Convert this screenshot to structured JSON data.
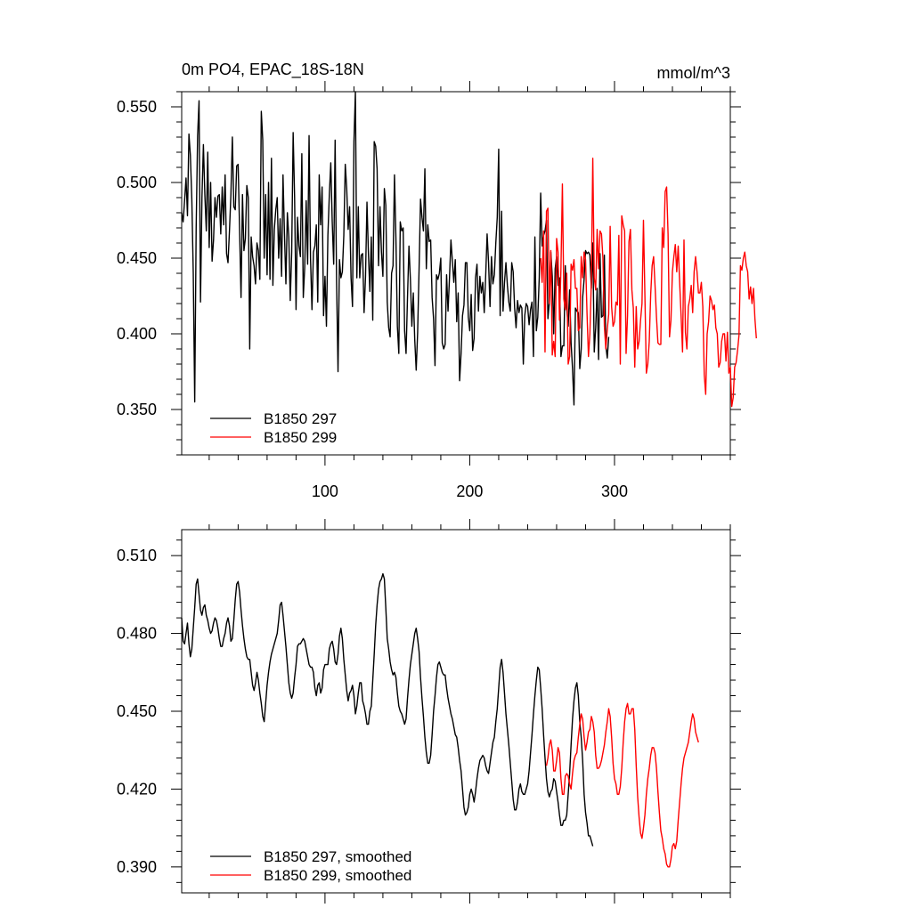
{
  "chart_data": [
    {
      "type": "line",
      "title": "0m PO4, EPAC_18S-18N",
      "units": "mmol/m^3",
      "xlim": [
        1,
        380
      ],
      "ylim": [
        0.32,
        0.56
      ],
      "xticks": [
        100,
        200,
        300
      ],
      "xtick_labels": [
        "100",
        "200",
        "300"
      ],
      "yticks": [
        0.35,
        0.4,
        0.45,
        0.5,
        0.55
      ],
      "ytick_labels": [
        "0.350",
        "0.400",
        "0.450",
        "0.500",
        "0.550"
      ],
      "grid": false,
      "legend_position": "bottom-left",
      "series": [
        {
          "name": "B1850 297",
          "color": "#000000",
          "x_start": 1,
          "values": [
            0.48,
            0.474,
            0.488,
            0.503,
            0.478,
            0.532,
            0.518,
            0.489,
            0.44,
            0.355,
            0.47,
            0.531,
            0.554,
            0.421,
            0.49,
            0.525,
            0.492,
            0.468,
            0.52,
            0.457,
            0.5,
            0.448,
            0.462,
            0.49,
            0.477,
            0.491,
            0.492,
            0.466,
            0.497,
            0.472,
            0.505,
            0.453,
            0.447,
            0.468,
            0.492,
            0.53,
            0.484,
            0.482,
            0.511,
            0.512,
            0.469,
            0.424,
            0.492,
            0.455,
            0.463,
            0.498,
            0.49,
            0.39,
            0.464,
            0.451,
            0.445,
            0.433,
            0.46,
            0.455,
            0.436,
            0.547,
            0.528,
            0.45,
            0.492,
            0.439,
            0.5,
            0.436,
            0.516,
            0.432,
            0.469,
            0.482,
            0.49,
            0.45,
            0.476,
            0.438,
            0.505,
            0.466,
            0.433,
            0.48,
            0.464,
            0.422,
            0.454,
            0.533,
            0.49,
            0.416,
            0.477,
            0.458,
            0.451,
            0.519,
            0.424,
            0.444,
            0.488,
            0.446,
            0.531,
            0.45,
            0.416,
            0.454,
            0.458,
            0.472,
            0.421,
            0.505,
            0.472,
            0.497,
            0.412,
            0.438,
            0.405,
            0.465,
            0.492,
            0.513,
            0.474,
            0.446,
            0.528,
            0.435,
            0.375,
            0.449,
            0.437,
            0.441,
            0.465,
            0.512,
            0.496,
            0.469,
            0.484,
            0.437,
            0.418,
            0.527,
            0.56,
            0.437,
            0.484,
            0.437,
            0.452,
            0.453,
            0.414,
            0.438,
            0.487,
            0.453,
            0.428,
            0.464,
            0.409,
            0.527,
            0.524,
            0.509,
            0.445,
            0.484,
            0.454,
            0.438,
            0.496,
            0.485,
            0.421,
            0.404,
            0.398,
            0.44,
            0.445,
            0.505,
            0.463,
            0.405,
            0.387,
            0.474,
            0.468,
            0.47,
            0.402,
            0.387,
            0.424,
            0.458,
            0.436,
            0.405,
            0.427,
            0.396,
            0.376,
            0.401,
            0.443,
            0.489,
            0.477,
            0.468,
            0.509,
            0.443,
            0.472,
            0.461,
            0.462,
            0.424,
            0.41,
            0.379,
            0.439,
            0.436,
            0.44,
            0.45,
            0.394,
            0.39,
            0.393,
            0.439,
            0.415,
            0.437,
            0.462,
            0.448,
            0.434,
            0.449,
            0.408,
            0.427,
            0.369,
            0.387,
            0.412,
            0.419,
            0.447,
            0.447,
            0.411,
            0.402,
            0.426,
            0.389,
            0.397,
            0.437,
            0.446,
            0.415,
            0.438,
            0.427,
            0.434,
            0.414,
            0.438,
            0.466,
            0.447,
            0.418,
            0.451,
            0.433,
            0.439,
            0.46,
            0.477,
            0.522,
            0.412,
            0.481,
            0.415,
            0.434,
            0.447,
            0.432,
            0.421,
            0.415,
            0.447,
            0.441,
            0.417,
            0.404,
            0.422,
            0.414,
            0.419,
            0.417,
            0.38,
            0.412,
            0.42,
            0.418,
            0.406,
            0.416,
            0.421,
            0.385,
            0.464,
            0.402,
            0.411,
            0.437,
            0.493,
            0.458,
            0.465,
            0.468,
            0.475,
            0.41,
            0.421,
            0.454,
            0.438,
            0.4,
            0.443,
            0.451,
            0.432,
            0.437,
            0.385,
            0.392,
            0.392,
            0.445,
            0.417,
            0.405,
            0.429,
            0.394,
            0.377,
            0.353,
            0.417,
            0.415,
            0.414,
            0.377,
            0.39,
            0.424,
            0.436,
            0.455,
            0.453,
            0.454,
            0.452,
            0.43,
            0.46,
            0.388,
            0.404,
            0.43,
            0.383,
            0.453,
            0.411,
            0.412,
            0.452,
            0.392,
            0.384,
            0.398
          ]
        },
        {
          "name": "B1850 299",
          "color": "#ff0000",
          "x_start": 249,
          "values": [
            0.45,
            0.434,
            0.468,
            0.388,
            0.481,
            0.483,
            0.42,
            0.455,
            0.386,
            0.395,
            0.385,
            0.463,
            0.454,
            0.409,
            0.443,
            0.499,
            0.423,
            0.416,
            0.44,
            0.38,
            0.385,
            0.446,
            0.442,
            0.449,
            0.43,
            0.43,
            0.402,
            0.404,
            0.451,
            0.437,
            0.454,
            0.449,
            0.414,
            0.385,
            0.4,
            0.435,
            0.516,
            0.437,
            0.429,
            0.469,
            0.443,
            0.468,
            0.466,
            0.45,
            0.405,
            0.39,
            0.403,
            0.413,
            0.471,
            0.418,
            0.405,
            0.408,
            0.421,
            0.419,
            0.465,
            0.38,
            0.478,
            0.472,
            0.468,
            0.387,
            0.412,
            0.461,
            0.469,
            0.429,
            0.417,
            0.378,
            0.418,
            0.39,
            0.395,
            0.409,
            0.42,
            0.475,
            0.425,
            0.374,
            0.38,
            0.395,
            0.426,
            0.445,
            0.451,
            0.432,
            0.411,
            0.394,
            0.393,
            0.393,
            0.47,
            0.457,
            0.494,
            0.497,
            0.466,
            0.398,
            0.409,
            0.441,
            0.451,
            0.459,
            0.441,
            0.458,
            0.434,
            0.412,
            0.388,
            0.462,
            0.401,
            0.39,
            0.418,
            0.423,
            0.432,
            0.414,
            0.441,
            0.451,
            0.441,
            0.427,
            0.427,
            0.434,
            0.418,
            0.373,
            0.36,
            0.4,
            0.408,
            0.425,
            0.422,
            0.416,
            0.419,
            0.404,
            0.4,
            0.378,
            0.381,
            0.395,
            0.4,
            0.4,
            0.382,
            0.401,
            0.374,
            0.378,
            0.352,
            0.358,
            0.378,
            0.381,
            0.389,
            0.399,
            0.445,
            0.442,
            0.45,
            0.454,
            0.445,
            0.441,
            0.423,
            0.431,
            0.42,
            0.43,
            0.41,
            0.397
          ]
        }
      ],
      "legend": [
        "B1850 297",
        "B1850 299"
      ]
    },
    {
      "type": "line",
      "title": "",
      "xlim": [
        1,
        380
      ],
      "ylim": [
        0.38,
        0.52
      ],
      "xticks": [
        100,
        200,
        300
      ],
      "yticks": [
        0.39,
        0.42,
        0.45,
        0.48,
        0.51
      ],
      "ytick_labels": [
        "0.390",
        "0.420",
        "0.450",
        "0.480",
        "0.510"
      ],
      "grid": false,
      "legend_position": "bottom-left",
      "series": [
        {
          "name": "B1850 297, smoothed",
          "color": "#000000",
          "x_start": 1,
          "values": [
            0.486,
            0.477,
            0.476,
            0.48,
            0.484,
            0.476,
            0.471,
            0.474,
            0.482,
            0.49,
            0.499,
            0.501,
            0.495,
            0.489,
            0.487,
            0.49,
            0.491,
            0.487,
            0.485,
            0.482,
            0.48,
            0.481,
            0.484,
            0.486,
            0.485,
            0.482,
            0.478,
            0.475,
            0.475,
            0.478,
            0.48,
            0.484,
            0.486,
            0.483,
            0.477,
            0.478,
            0.485,
            0.493,
            0.499,
            0.5,
            0.496,
            0.489,
            0.483,
            0.478,
            0.474,
            0.471,
            0.47,
            0.47,
            0.465,
            0.46,
            0.458,
            0.461,
            0.465,
            0.462,
            0.457,
            0.453,
            0.448,
            0.446,
            0.453,
            0.46,
            0.465,
            0.469,
            0.472,
            0.474,
            0.476,
            0.478,
            0.48,
            0.485,
            0.491,
            0.492,
            0.487,
            0.481,
            0.475,
            0.468,
            0.461,
            0.457,
            0.455,
            0.457,
            0.463,
            0.468,
            0.475,
            0.476,
            0.476,
            0.477,
            0.478,
            0.477,
            0.474,
            0.471,
            0.468,
            0.467,
            0.467,
            0.465,
            0.459,
            0.456,
            0.46,
            0.461,
            0.457,
            0.459,
            0.466,
            0.468,
            0.468,
            0.468,
            0.474,
            0.476,
            0.477,
            0.474,
            0.469,
            0.468,
            0.472,
            0.479,
            0.482,
            0.478,
            0.47,
            0.464,
            0.458,
            0.454,
            0.457,
            0.458,
            0.46,
            0.456,
            0.449,
            0.452,
            0.457,
            0.461,
            0.461,
            0.454,
            0.452,
            0.449,
            0.445,
            0.445,
            0.45,
            0.452,
            0.462,
            0.472,
            0.483,
            0.491,
            0.497,
            0.5,
            0.501,
            0.503,
            0.501,
            0.49,
            0.478,
            0.474,
            0.469,
            0.466,
            0.464,
            0.465,
            0.463,
            0.457,
            0.452,
            0.45,
            0.449,
            0.447,
            0.445,
            0.447,
            0.455,
            0.462,
            0.468,
            0.472,
            0.476,
            0.48,
            0.482,
            0.478,
            0.473,
            0.463,
            0.455,
            0.448,
            0.44,
            0.434,
            0.43,
            0.43,
            0.433,
            0.441,
            0.45,
            0.456,
            0.463,
            0.468,
            0.469,
            0.467,
            0.465,
            0.464,
            0.464,
            0.459,
            0.455,
            0.452,
            0.449,
            0.447,
            0.444,
            0.441,
            0.44,
            0.436,
            0.431,
            0.427,
            0.42,
            0.413,
            0.41,
            0.411,
            0.413,
            0.418,
            0.42,
            0.418,
            0.415,
            0.419,
            0.424,
            0.428,
            0.431,
            0.432,
            0.433,
            0.432,
            0.429,
            0.427,
            0.426,
            0.43,
            0.434,
            0.438,
            0.44,
            0.446,
            0.451,
            0.459,
            0.467,
            0.47,
            0.465,
            0.457,
            0.449,
            0.443,
            0.437,
            0.43,
            0.423,
            0.416,
            0.412,
            0.412,
            0.415,
            0.42,
            0.422,
            0.419,
            0.418,
            0.418,
            0.42,
            0.422,
            0.427,
            0.434,
            0.441,
            0.449,
            0.456,
            0.462,
            0.467,
            0.466,
            0.459,
            0.451,
            0.441,
            0.432,
            0.424,
            0.419,
            0.417,
            0.419,
            0.42,
            0.424,
            0.423,
            0.419,
            0.415,
            0.41,
            0.406,
            0.406,
            0.408,
            0.408,
            0.41,
            0.418,
            0.426,
            0.437,
            0.447,
            0.454,
            0.459,
            0.461,
            0.456,
            0.446,
            0.44,
            0.431,
            0.418,
            0.411,
            0.407,
            0.402,
            0.402,
            0.4,
            0.398
          ]
        },
        {
          "name": "B1850 299, smoothed",
          "color": "#ff0000",
          "x_start": 253,
          "values": [
            0.429,
            0.432,
            0.437,
            0.439,
            0.435,
            0.427,
            0.427,
            0.431,
            0.436,
            0.434,
            0.424,
            0.418,
            0.418,
            0.425,
            0.426,
            0.425,
            0.422,
            0.42,
            0.426,
            0.431,
            0.433,
            0.434,
            0.44,
            0.445,
            0.449,
            0.447,
            0.44,
            0.435,
            0.438,
            0.442,
            0.443,
            0.448,
            0.446,
            0.442,
            0.433,
            0.428,
            0.428,
            0.429,
            0.431,
            0.434,
            0.437,
            0.442,
            0.446,
            0.451,
            0.448,
            0.44,
            0.43,
            0.424,
            0.422,
            0.418,
            0.418,
            0.421,
            0.428,
            0.438,
            0.446,
            0.451,
            0.453,
            0.449,
            0.449,
            0.451,
            0.451,
            0.443,
            0.429,
            0.417,
            0.409,
            0.403,
            0.401,
            0.405,
            0.41,
            0.418,
            0.424,
            0.428,
            0.433,
            0.436,
            0.436,
            0.434,
            0.428,
            0.419,
            0.411,
            0.404,
            0.401,
            0.397,
            0.395,
            0.391,
            0.39,
            0.39,
            0.393,
            0.398,
            0.399,
            0.397,
            0.4,
            0.408,
            0.415,
            0.422,
            0.428,
            0.432,
            0.434,
            0.436,
            0.438,
            0.442,
            0.446,
            0.449,
            0.447,
            0.442,
            0.44,
            0.438
          ]
        }
      ],
      "legend": [
        "B1850 297, smoothed",
        "B1850 299, smoothed"
      ]
    }
  ]
}
